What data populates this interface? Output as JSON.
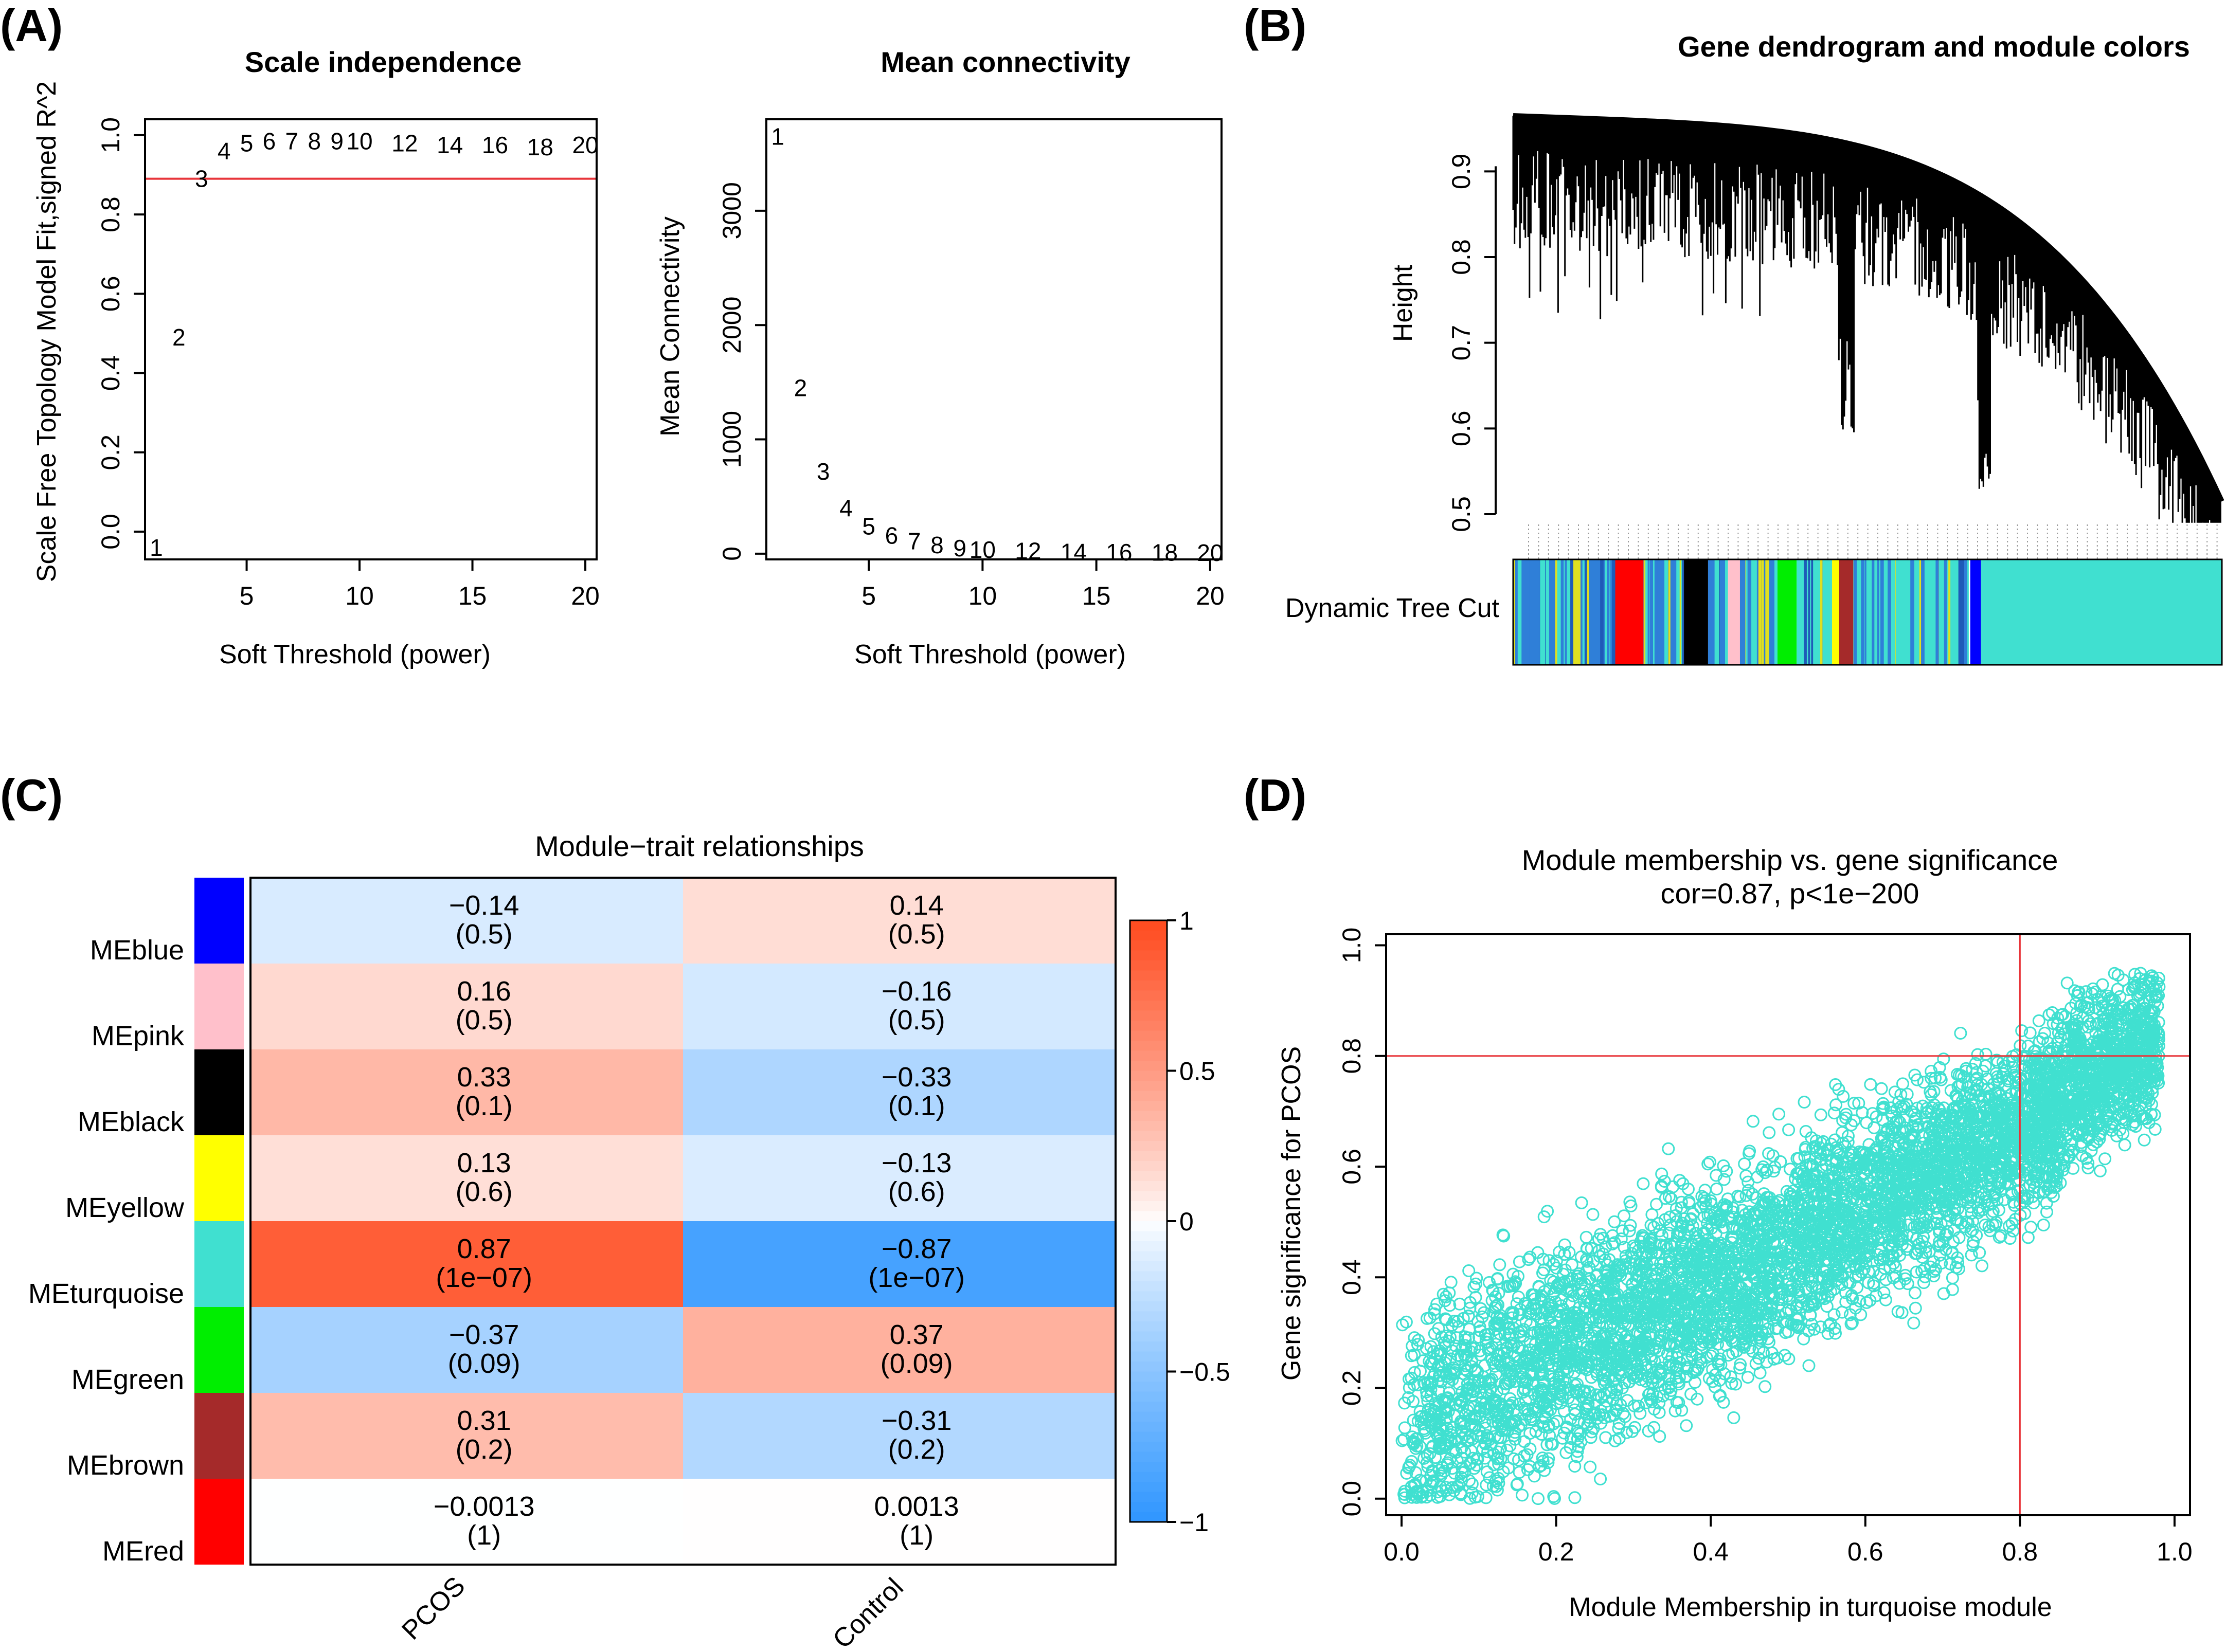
{
  "panels": {
    "a": "(A)",
    "b": "(B)",
    "c": "(C)",
    "d": "(D)"
  },
  "colors": {
    "line_red": "#e8353a",
    "turquoise": "#40e0d0",
    "heat_pos": "#ff4a1e",
    "heat_neg": "#2f96ff"
  },
  "chart_data": [
    {
      "id": "scale_independence",
      "type": "scatter",
      "title": "Scale independence",
      "xlabel": "Soft Threshold (power)",
      "ylabel": "Scale Free Topology Model Fit,signed R^2",
      "xlim": [
        0.5,
        20.5
      ],
      "ylim": [
        -0.07,
        1.04
      ],
      "xticks": [
        5,
        10,
        15,
        20
      ],
      "yticks": [
        0.0,
        0.2,
        0.4,
        0.6,
        0.8,
        1.0
      ],
      "ytick_labels": [
        "0.0",
        "0.2",
        "0.4",
        "0.6",
        "0.8",
        "1.0"
      ],
      "hline": 0.89,
      "points": [
        {
          "label": "1",
          "x": 1,
          "y": -0.04
        },
        {
          "label": "2",
          "x": 2,
          "y": 0.49
        },
        {
          "label": "3",
          "x": 3,
          "y": 0.89
        },
        {
          "label": "4",
          "x": 4,
          "y": 0.96
        },
        {
          "label": "5",
          "x": 5,
          "y": 0.98
        },
        {
          "label": "6",
          "x": 6,
          "y": 0.985
        },
        {
          "label": "7",
          "x": 7,
          "y": 0.985
        },
        {
          "label": "8",
          "x": 8,
          "y": 0.985
        },
        {
          "label": "9",
          "x": 9,
          "y": 0.985
        },
        {
          "label": "10",
          "x": 10,
          "y": 0.985
        },
        {
          "label": "12",
          "x": 12,
          "y": 0.98
        },
        {
          "label": "14",
          "x": 14,
          "y": 0.975
        },
        {
          "label": "16",
          "x": 16,
          "y": 0.975
        },
        {
          "label": "18",
          "x": 18,
          "y": 0.97
        },
        {
          "label": "20",
          "x": 20,
          "y": 0.975
        }
      ]
    },
    {
      "id": "mean_connectivity",
      "type": "scatter",
      "title": "Mean connectivity",
      "xlabel": "Soft Threshold (power)",
      "ylabel": "Mean Connectivity",
      "xlim": [
        0.5,
        20.5
      ],
      "ylim": [
        -50,
        3800
      ],
      "xticks": [
        5,
        10,
        15,
        20
      ],
      "yticks": [
        0,
        1000,
        2000,
        3000
      ],
      "points": [
        {
          "label": "1",
          "x": 1,
          "y": 3650
        },
        {
          "label": "2",
          "x": 2,
          "y": 1450
        },
        {
          "label": "3",
          "x": 3,
          "y": 720
        },
        {
          "label": "4",
          "x": 4,
          "y": 400
        },
        {
          "label": "5",
          "x": 5,
          "y": 240
        },
        {
          "label": "6",
          "x": 6,
          "y": 160
        },
        {
          "label": "7",
          "x": 7,
          "y": 110
        },
        {
          "label": "8",
          "x": 8,
          "y": 75
        },
        {
          "label": "9",
          "x": 9,
          "y": 50
        },
        {
          "label": "10",
          "x": 10,
          "y": 35
        },
        {
          "label": "12",
          "x": 12,
          "y": 25
        },
        {
          "label": "14",
          "x": 14,
          "y": 15
        },
        {
          "label": "16",
          "x": 16,
          "y": 12
        },
        {
          "label": "18",
          "x": 18,
          "y": 10
        },
        {
          "label": "20",
          "x": 20,
          "y": 8
        }
      ]
    },
    {
      "id": "gene_dendrogram",
      "type": "dendrogram",
      "title": "Gene dendrogram and module colors",
      "ylabel": "Height",
      "ylim": [
        0.47,
        0.98
      ],
      "yticks": [
        0.5,
        0.6,
        0.7,
        0.8,
        0.9
      ],
      "ytick_labels": [
        "0.5",
        "0.6",
        "0.7",
        "0.8",
        "0.9"
      ],
      "color_bar_label": "Dynamic Tree Cut",
      "segments": [
        {
          "color": "#2f7fd8",
          "start": 0.0,
          "end": 0.06
        },
        {
          "color": "#40e0d0",
          "start": 0.06,
          "end": 0.085
        },
        {
          "color": "#e0e020",
          "start": 0.085,
          "end": 0.095
        },
        {
          "color": "#2f7fd8",
          "start": 0.095,
          "end": 0.14
        },
        {
          "color": "#ff0000",
          "start": 0.14,
          "end": 0.184
        },
        {
          "color": "#40e0d0",
          "start": 0.184,
          "end": 0.2
        },
        {
          "color": "#2f7fd8",
          "start": 0.2,
          "end": 0.24
        },
        {
          "color": "#000000",
          "start": 0.24,
          "end": 0.275
        },
        {
          "color": "#2f7fd8",
          "start": 0.275,
          "end": 0.3
        },
        {
          "color": "#ffc0cb",
          "start": 0.3,
          "end": 0.32
        },
        {
          "color": "#2f7fd8",
          "start": 0.32,
          "end": 0.37
        },
        {
          "color": "#00ee00",
          "start": 0.37,
          "end": 0.4
        },
        {
          "color": "#40e0d0",
          "start": 0.4,
          "end": 0.45
        },
        {
          "color": "#ffff00",
          "start": 0.45,
          "end": 0.46
        },
        {
          "color": "#a52a2a",
          "start": 0.46,
          "end": 0.48
        },
        {
          "color": "#40e0d0",
          "start": 0.48,
          "end": 0.64
        },
        {
          "color": "#0000ff",
          "start": 0.645,
          "end": 0.66
        },
        {
          "color": "#40e0d0",
          "start": 0.66,
          "end": 1.0
        }
      ]
    },
    {
      "id": "module_trait",
      "type": "heatmap",
      "title": "Module−trait relationships",
      "columns": [
        "PCOS",
        "Control"
      ],
      "rows": [
        {
          "name": "MEblue",
          "color": "#0000ff",
          "values": [
            "−0.14",
            "0.14"
          ],
          "pvalues": [
            "(0.5)",
            "(0.5)"
          ],
          "z": [
            -0.14,
            0.14
          ]
        },
        {
          "name": "MEpink",
          "color": "#ffc0cb",
          "values": [
            "0.16",
            "−0.16"
          ],
          "pvalues": [
            "(0.5)",
            "(0.5)"
          ],
          "z": [
            0.16,
            -0.16
          ]
        },
        {
          "name": "MEblack",
          "color": "#000000",
          "values": [
            "0.33",
            "−0.33"
          ],
          "pvalues": [
            "(0.1)",
            "(0.1)"
          ],
          "z": [
            0.33,
            -0.33
          ]
        },
        {
          "name": "MEyellow",
          "color": "#ffff00",
          "values": [
            "0.13",
            "−0.13"
          ],
          "pvalues": [
            "(0.6)",
            "(0.6)"
          ],
          "z": [
            0.13,
            -0.13
          ]
        },
        {
          "name": "MEturquoise",
          "color": "#40e0d0",
          "values": [
            "0.87",
            "−0.87"
          ],
          "pvalues": [
            "(1e−07)",
            "(1e−07)"
          ],
          "z": [
            0.87,
            -0.87
          ]
        },
        {
          "name": "MEgreen",
          "color": "#00ee00",
          "values": [
            "−0.37",
            "0.37"
          ],
          "pvalues": [
            "(0.09)",
            "(0.09)"
          ],
          "z": [
            -0.37,
            0.37
          ]
        },
        {
          "name": "MEbrown",
          "color": "#a52a2a",
          "values": [
            "0.31",
            "−0.31"
          ],
          "pvalues": [
            "(0.2)",
            "(0.2)"
          ],
          "z": [
            0.31,
            -0.31
          ]
        },
        {
          "name": "MEred",
          "color": "#ff0000",
          "values": [
            "−0.0013",
            "0.0013"
          ],
          "pvalues": [
            "(1)",
            "(1)"
          ],
          "z": [
            -0.0013,
            0.0013
          ]
        }
      ],
      "colorbar": {
        "range": [
          -1,
          1
        ],
        "ticks": [
          1,
          0.5,
          0,
          -0.5,
          -1
        ],
        "tick_labels": [
          "1",
          "0.5",
          "0",
          "−0.5",
          "−1"
        ]
      }
    },
    {
      "id": "mm_vs_gs",
      "type": "scatter",
      "title": "Module membership vs. gene significance",
      "subtitle": "cor=0.87, p<1e−200",
      "xlabel": "Module Membership in turquoise module",
      "ylabel": "Gene significance for PCOS",
      "xlim": [
        -0.02,
        1.02
      ],
      "ylim": [
        -0.03,
        1.02
      ],
      "xticks": [
        0.0,
        0.2,
        0.4,
        0.6,
        0.8,
        1.0
      ],
      "xtick_labels": [
        "0.0",
        "0.2",
        "0.4",
        "0.6",
        "0.8",
        "1.0"
      ],
      "yticks": [
        0.0,
        0.2,
        0.4,
        0.6,
        0.8,
        1.0
      ],
      "ytick_labels": [
        "0.0",
        "0.2",
        "0.4",
        "0.6",
        "0.8",
        "1.0"
      ],
      "vline": 0.8,
      "hline": 0.8,
      "point_color": "#40e0d0",
      "n_points": 5500,
      "trend": {
        "slope": 0.68,
        "intercept": 0.12,
        "x_range": [
          0.0,
          0.98
        ],
        "y_range": [
          0.0,
          0.96
        ]
      }
    }
  ]
}
